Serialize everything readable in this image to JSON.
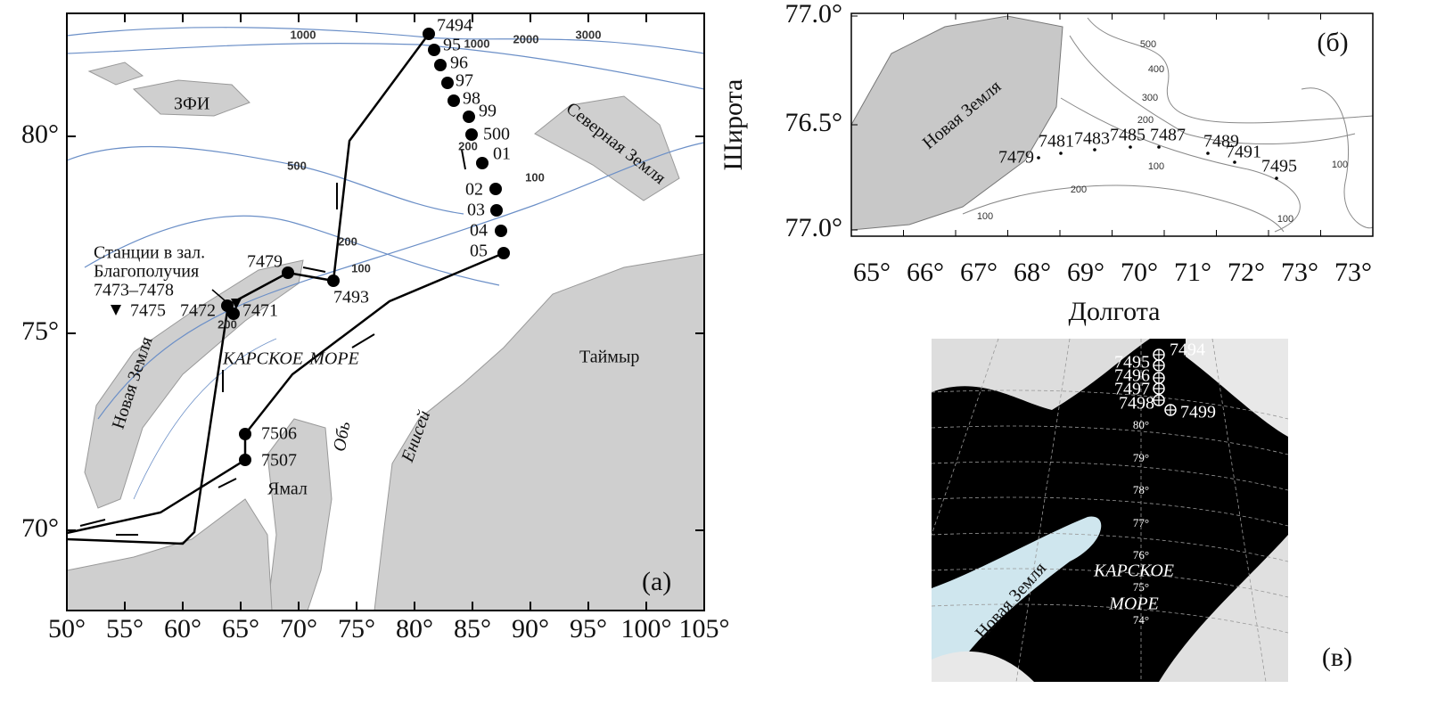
{
  "panel_a": {
    "label": "(а)",
    "x_ticks": [
      "50°",
      "55°",
      "60°",
      "65°",
      "70°",
      "75°",
      "80°",
      "85°",
      "90°",
      "95°",
      "100°",
      "105°"
    ],
    "y_ticks": [
      "70°",
      "75°",
      "80°"
    ],
    "contours": [
      "1000",
      "1000",
      "2000",
      "3000",
      "500",
      "100",
      "200",
      "100",
      "200",
      "200"
    ],
    "stations": [
      "7494",
      "95",
      "96",
      "97",
      "98",
      "99",
      "500",
      "01",
      "02",
      "03",
      "04",
      "05",
      "7479",
      "7493",
      "7472",
      "7471",
      "7475",
      "7506",
      "7507"
    ],
    "bay_note": [
      "Станции в зал.",
      "Благополучия",
      "7473–7478"
    ],
    "places": [
      "ЗФИ",
      "Северная Земля",
      "Новая Земля",
      "КАРСКОЕ",
      "МОРЕ",
      "Таймыр",
      "Ямал",
      "Обь",
      "Енисей"
    ]
  },
  "panel_b": {
    "label": "(б)",
    "y_ticks": [
      "77.0°",
      "76.5°",
      "77.0°"
    ],
    "x_ticks": [
      "65°",
      "66°",
      "67°",
      "68°",
      "69°",
      "70°",
      "71°",
      "72°",
      "73°",
      "73°"
    ],
    "y_title": "Широта",
    "x_title": "Долгота",
    "contours": [
      "500",
      "400",
      "300",
      "200",
      "100",
      "200",
      "100",
      "100",
      "100"
    ],
    "stations": [
      "7479",
      "7481",
      "7483",
      "7485",
      "7487",
      "7489",
      "7491",
      "7495"
    ],
    "places": [
      "Новая Земля"
    ]
  },
  "panel_c": {
    "label": "(в)",
    "stations": [
      "7494",
      "7495",
      "7496",
      "7497",
      "7498",
      "7499"
    ],
    "latitudes": [
      "80°",
      "79°",
      "78°",
      "77°",
      "76°",
      "75°",
      "74°"
    ],
    "places": [
      "КАРСКОЕ",
      "МОРЕ",
      "Новая Земля"
    ]
  }
}
